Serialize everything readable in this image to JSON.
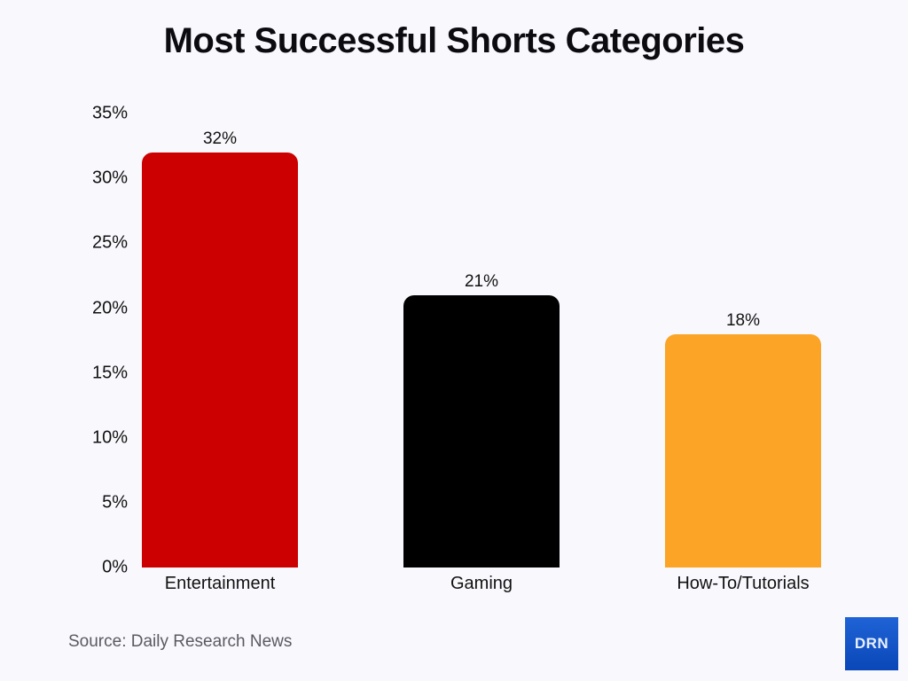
{
  "title": "Most Successful Shorts Categories",
  "source": "Source: Daily Research News",
  "logo": "DRN",
  "y_ticks": [
    "0%",
    "5%",
    "10%",
    "15%",
    "20%",
    "25%",
    "30%",
    "35%"
  ],
  "bars": [
    {
      "category": "Entertainment",
      "value": 32,
      "label": "32%",
      "color": "#cc0000"
    },
    {
      "category": "Gaming",
      "value": 21,
      "label": "21%",
      "color": "#000000"
    },
    {
      "category": "How-To/Tutorials",
      "value": 18,
      "label": "18%",
      "color": "#fba425"
    }
  ],
  "chart_data": {
    "type": "bar",
    "title": "Most Successful Shorts Categories",
    "categories": [
      "Entertainment",
      "Gaming",
      "How-To/Tutorials"
    ],
    "values": [
      32,
      21,
      18
    ],
    "data_labels": [
      "32%",
      "21%",
      "18%"
    ],
    "colors": [
      "#cc0000",
      "#000000",
      "#fba425"
    ],
    "xlabel": "",
    "ylabel": "",
    "ylim": [
      0,
      35
    ],
    "y_ticks": [
      0,
      5,
      10,
      15,
      20,
      25,
      30,
      35
    ],
    "y_tick_format": "percent",
    "grid": false,
    "legend": "none",
    "annotations": [
      "Source: Daily Research News"
    ]
  }
}
